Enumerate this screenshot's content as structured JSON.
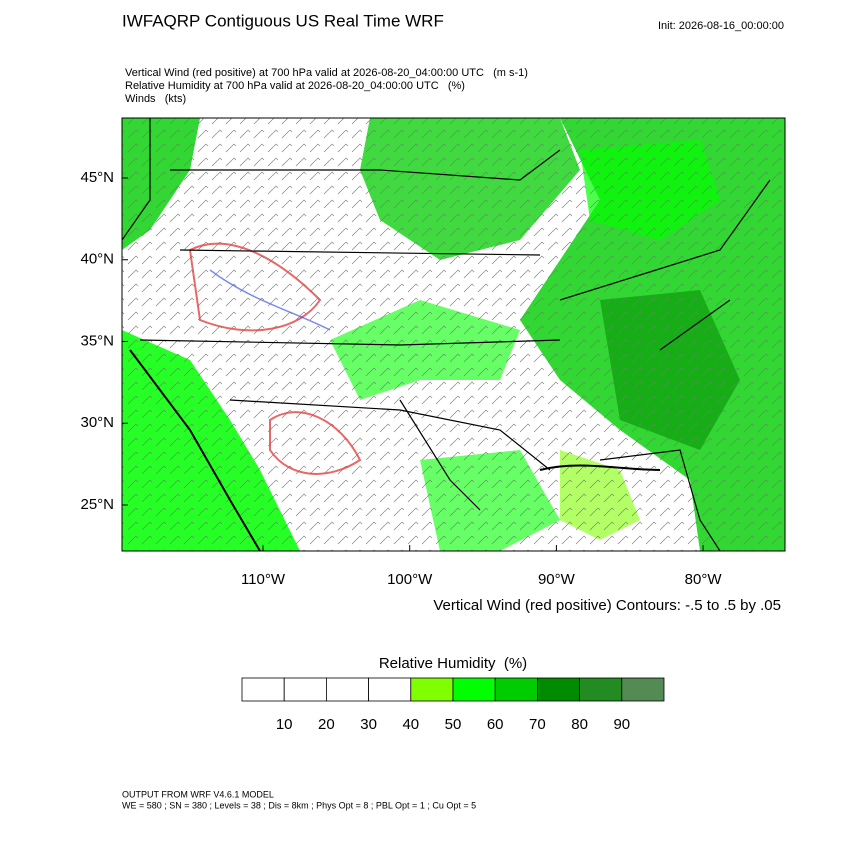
{
  "header": {
    "title": "IWFAQRP Contiguous US Real Time WRF",
    "init": "Init: 2026-08-16_00:00:00"
  },
  "subtitle": [
    "Vertical Wind (red positive) at 700 hPa valid at 2026-08-20_04:00:00 UTC   (m s-1)",
    "Relative Humidity at 700 hPa valid at 2026-08-20_04:00:00 UTC   (%)",
    "Winds   (kts)"
  ],
  "map": {
    "lon_ticks": [
      {
        "value": -110,
        "label": "110°W"
      },
      {
        "value": -100,
        "label": "100°W"
      },
      {
        "value": -90,
        "label": "90°W"
      },
      {
        "value": -80,
        "label": "80°W"
      }
    ],
    "lat_ticks": [
      {
        "value": 45,
        "label": "45°N"
      },
      {
        "value": 40,
        "label": "40°N"
      },
      {
        "value": 35,
        "label": "35°N"
      },
      {
        "value": 30,
        "label": "30°N"
      },
      {
        "value": 25,
        "label": "25°N"
      }
    ],
    "contour_note": "Vertical Wind (red positive) Contours: -.5 to .5 by .05"
  },
  "colorbar": {
    "title": "Relative Humidity  (%)",
    "colors": [
      "#ffffff",
      "#ffffff",
      "#ffffff",
      "#ffffff",
      "#7fff00",
      "#00ff00",
      "#00cd00",
      "#008b00",
      "#228b22",
      "#548b54"
    ],
    "ticks": [
      10,
      20,
      30,
      40,
      50,
      60,
      70,
      80,
      90
    ]
  },
  "footer": [
    "OUTPUT FROM WRF V4.6.1 MODEL",
    "WE = 580 ; SN = 380 ; Levels = 38 ; Dis = 8km ; Phys Opt = 8 ; PBL Opt = 1 ; Cu Opt = 5"
  ]
}
